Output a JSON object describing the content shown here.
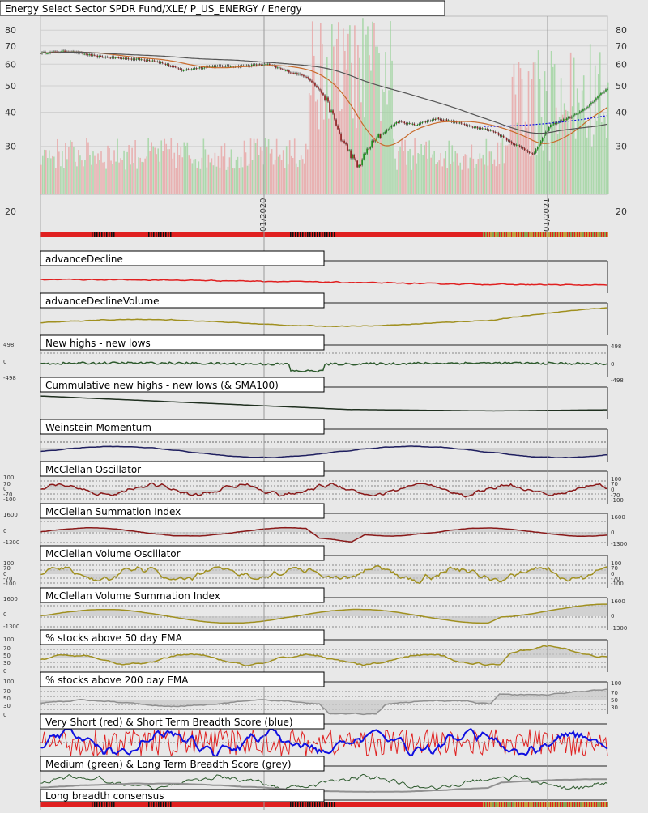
{
  "chart_data": {
    "type": "line",
    "title": "Energy Select Sector SPDR Fund/XLE/ P_US_ENERGY / Energy",
    "x_axis": {
      "ticks": [
        "01/2020",
        "01/2021"
      ]
    },
    "main": {
      "y_ticks": [
        80,
        70,
        60,
        50,
        40,
        30,
        20
      ],
      "ylim": [
        20,
        90
      ],
      "scale": "log",
      "price_anchors": [
        [
          0,
          66
        ],
        [
          0.05,
          67
        ],
        [
          0.1,
          64
        ],
        [
          0.15,
          63
        ],
        [
          0.2,
          62
        ],
        [
          0.25,
          57
        ],
        [
          0.3,
          59
        ],
        [
          0.35,
          59
        ],
        [
          0.4,
          60
        ],
        [
          0.43,
          57
        ],
        [
          0.47,
          54
        ],
        [
          0.5,
          46
        ],
        [
          0.53,
          32
        ],
        [
          0.56,
          25
        ],
        [
          0.58,
          30
        ],
        [
          0.6,
          33
        ],
        [
          0.63,
          37
        ],
        [
          0.66,
          36
        ],
        [
          0.7,
          38
        ],
        [
          0.75,
          36
        ],
        [
          0.8,
          34
        ],
        [
          0.83,
          31
        ],
        [
          0.87,
          28
        ],
        [
          0.9,
          36
        ],
        [
          0.93,
          38
        ],
        [
          0.96,
          41
        ],
        [
          1.0,
          49
        ]
      ]
    },
    "panels": [
      {
        "label": "advanceDecline",
        "color": "#e02020"
      },
      {
        "label": "advanceDeclineVolume",
        "color": "#a09020"
      },
      {
        "label": "New highs - new lows",
        "color": "#2d5a2d",
        "y_ticks": [
          "498",
          "0",
          "-498"
        ]
      },
      {
        "label": "Cummulative new highs - new lows (& SMA100)",
        "color": "#203020"
      },
      {
        "label": "Weinstein Momentum",
        "color": "#202060"
      },
      {
        "label": "McClellan Oscillator",
        "color": "#8a1a1a",
        "y_ticks": [
          "100",
          "70",
          "0",
          "-70",
          "-100"
        ]
      },
      {
        "label": "McClellan Summation Index",
        "color": "#8a1a1a",
        "y_ticks": [
          "1600",
          "0",
          "-1300"
        ]
      },
      {
        "label": "McClellan Volume Oscillator",
        "color": "#a09020",
        "y_ticks": [
          "100",
          "70",
          "0",
          "-70",
          "-100"
        ]
      },
      {
        "label": "McClellan Volume Summation Index",
        "color": "#a09020",
        "y_ticks": [
          "1600",
          "0",
          "-1300"
        ]
      },
      {
        "label": "% stocks above 50 day EMA",
        "color": "#a09020",
        "y_ticks": [
          "100",
          "70",
          "50",
          "30",
          "0"
        ]
      },
      {
        "label": "% stocks above 200 day EMA",
        "color": "#909090",
        "y_ticks": [
          "100",
          "70",
          "50",
          "30",
          "0"
        ]
      },
      {
        "label": "Very Short (red) & Short Term Breadth Score (blue)",
        "color": "#e02020",
        "color2": "#1010e0"
      },
      {
        "label": "Medium (green) & Long Term Breadth Score (grey)",
        "color": "#2d5a2d",
        "color2": "#909090"
      },
      {
        "label": "Long breadth consensus",
        "color": "#e02020"
      }
    ]
  }
}
